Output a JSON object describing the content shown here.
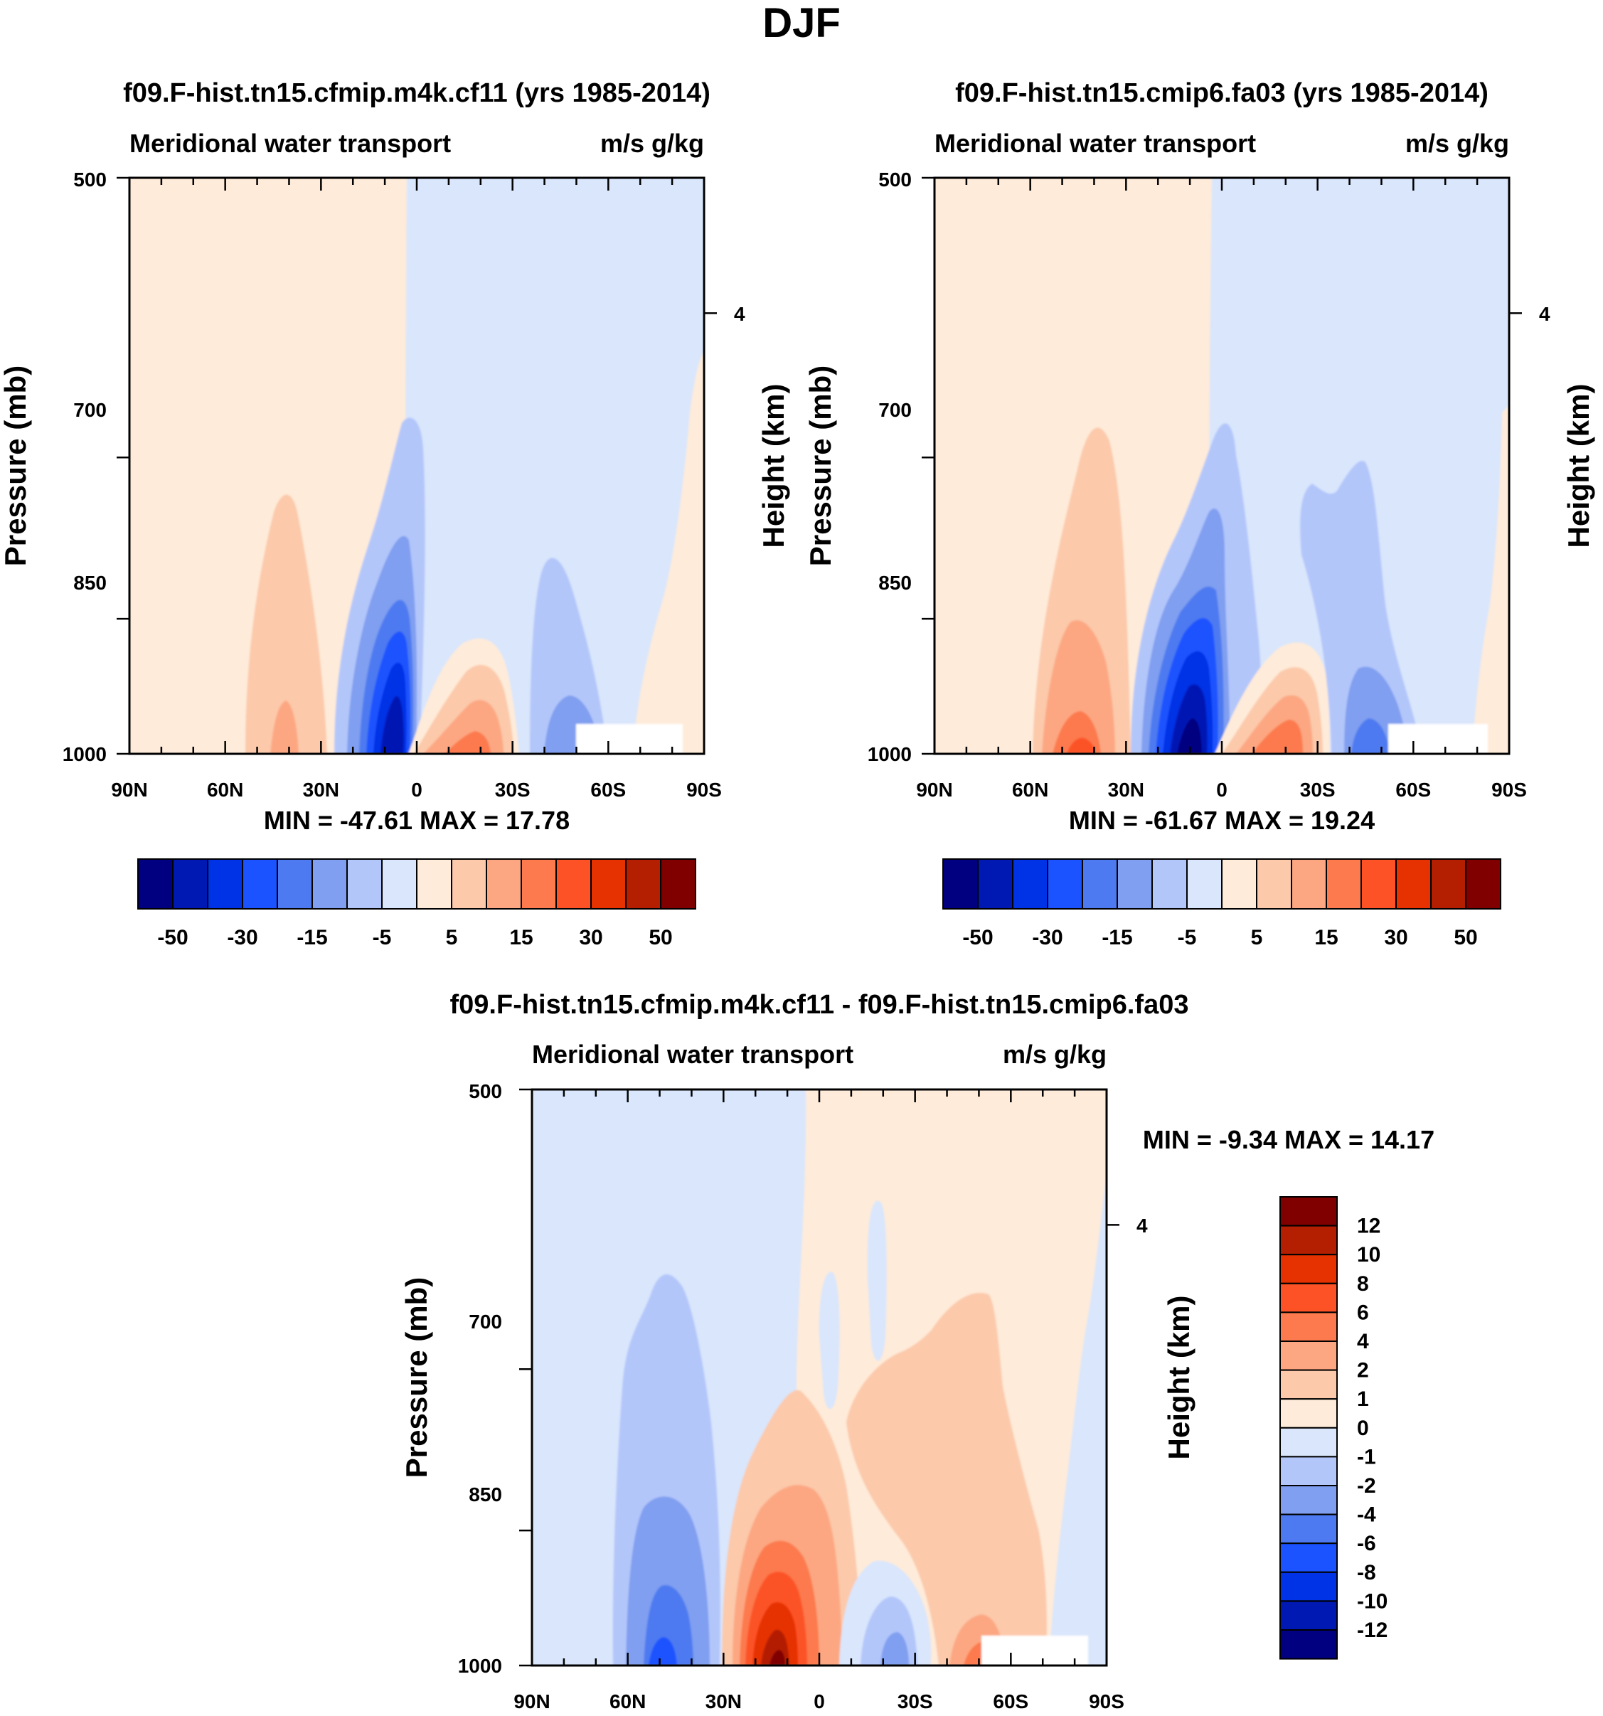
{
  "page_title": "DJF",
  "panels": [
    {
      "id": "top-left",
      "title": "f09.F-hist.tn15.cfmip.m4k.cf11 (yrs 1985-2014)",
      "left_string": "Meridional water transport",
      "right_string": "m/s g/kg",
      "ylabel": "Pressure (mb)",
      "y2label": "Height (km)",
      "stats": "MIN = -47.61  MAX =  17.78"
    },
    {
      "id": "top-right",
      "title": "f09.F-hist.tn15.cmip6.fa03 (yrs 1985-2014)",
      "left_string": "Meridional water transport",
      "right_string": "m/s g/kg",
      "ylabel": "Pressure (mb)",
      "y2label": "Height (km)",
      "stats": "MIN = -61.67  MAX =  19.24"
    },
    {
      "id": "bottom",
      "title": "f09.F-hist.tn15.cfmip.m4k.cf11 - f09.F-hist.tn15.cmip6.fa03",
      "left_string": "Meridional water transport",
      "right_string": "m/s g/kg",
      "ylabel": "Pressure (mb)",
      "y2label": "Height (km)",
      "stats": "MIN =  -9.34  MAX =  14.17"
    }
  ],
  "chart_data": [
    {
      "type": "heatmap",
      "title": "f09.F-hist.tn15.cfmip.m4k.cf11 (yrs 1985-2014)",
      "subtitle": "Meridional water transport",
      "units": "m/s g/kg",
      "xlabel": "",
      "ylabel": "Pressure (mb)",
      "y2label": "Height (km)",
      "x_ticks": [
        "90N",
        "60N",
        "30N",
        "0",
        "30S",
        "60S",
        "90S"
      ],
      "x_range": [
        90,
        -90
      ],
      "y_ticks": [
        500,
        700,
        850,
        1000
      ],
      "y_range": [
        500,
        1000
      ],
      "y2_ticks": [
        "4"
      ],
      "min": -47.61,
      "max": 17.78,
      "colorbar_labels": [
        "-50",
        "-30",
        "-15",
        "-5",
        "5",
        "15",
        "30",
        "50"
      ],
      "features": [
        {
          "lat": 38,
          "top_p": 780,
          "peak": 12,
          "sign": "positive"
        },
        {
          "lat": 10,
          "top_p": 700,
          "peak": -47.61,
          "sign": "negative"
        },
        {
          "lat": -18,
          "top_p": 920,
          "peak": 17.78,
          "sign": "positive"
        },
        {
          "lat": -45,
          "top_p": 830,
          "peak": -12,
          "sign": "negative"
        }
      ]
    },
    {
      "type": "heatmap",
      "title": "f09.F-hist.tn15.cmip6.fa03 (yrs 1985-2014)",
      "subtitle": "Meridional water transport",
      "units": "m/s g/kg",
      "xlabel": "",
      "ylabel": "Pressure (mb)",
      "y2label": "Height (km)",
      "x_ticks": [
        "90N",
        "60N",
        "30N",
        "0",
        "30S",
        "60S",
        "90S"
      ],
      "x_range": [
        90,
        -90
      ],
      "y_ticks": [
        500,
        700,
        850,
        1000
      ],
      "y_range": [
        500,
        1000
      ],
      "y2_ticks": [
        "4"
      ],
      "min": -61.67,
      "max": 19.24,
      "colorbar_labels": [
        "-50",
        "-30",
        "-15",
        "-5",
        "5",
        "15",
        "30",
        "50"
      ],
      "features": [
        {
          "lat": 38,
          "top_p": 710,
          "peak": 18,
          "sign": "positive"
        },
        {
          "lat": 10,
          "top_p": 700,
          "peak": -61.67,
          "sign": "negative"
        },
        {
          "lat": -20,
          "top_p": 920,
          "peak": 19.24,
          "sign": "positive"
        },
        {
          "lat": -40,
          "top_p": 750,
          "peak": -18,
          "sign": "negative"
        }
      ]
    },
    {
      "type": "heatmap",
      "title": "f09.F-hist.tn15.cfmip.m4k.cf11 - f09.F-hist.tn15.cmip6.fa03",
      "subtitle": "Meridional water transport",
      "units": "m/s g/kg",
      "xlabel": "",
      "ylabel": "Pressure (mb)",
      "y2label": "Height (km)",
      "x_ticks": [
        "90N",
        "60N",
        "30N",
        "0",
        "30S",
        "60S",
        "90S"
      ],
      "x_range": [
        90,
        -90
      ],
      "y_ticks": [
        500,
        700,
        850,
        1000
      ],
      "y_range": [
        500,
        1000
      ],
      "y2_ticks": [
        "4"
      ],
      "min": -9.34,
      "max": 14.17,
      "colorbar_labels": [
        "12",
        "10",
        "8",
        "6",
        "4",
        "2",
        "1",
        "0",
        "-1",
        "-2",
        "-4",
        "-6",
        "-8",
        "-10",
        "-12"
      ],
      "features": [
        {
          "lat": 45,
          "top_p": 660,
          "peak": -9.34,
          "sign": "negative"
        },
        {
          "lat": 12,
          "top_p": 840,
          "peak": 14.17,
          "sign": "positive"
        },
        {
          "lat": -25,
          "top_p": 940,
          "peak": -4,
          "sign": "negative"
        },
        {
          "lat": -50,
          "top_p": 680,
          "peak": 3,
          "sign": "positive"
        }
      ]
    }
  ],
  "palette": {
    "neg": [
      "#000080",
      "#0019b3",
      "#0033e6",
      "#1a53ff",
      "#4d7af0",
      "#809ff0",
      "#b3c6fa",
      "#d9e6fc"
    ],
    "pos": [
      "#feebd9",
      "#fcc9ab",
      "#fca782",
      "#fc7a4d",
      "#fc5226",
      "#e63200",
      "#b31f00",
      "#800000"
    ],
    "diff_pos": [
      "#800000",
      "#b31f00",
      "#e63200",
      "#fc5226",
      "#fc7a4d",
      "#fca782",
      "#fcc9ab",
      "#feebd9"
    ],
    "diff_neg": [
      "#d9e6fc",
      "#b3c6fa",
      "#809ff0",
      "#4d7af0",
      "#1a53ff",
      "#0033e6",
      "#0019b3",
      "#000080"
    ]
  }
}
